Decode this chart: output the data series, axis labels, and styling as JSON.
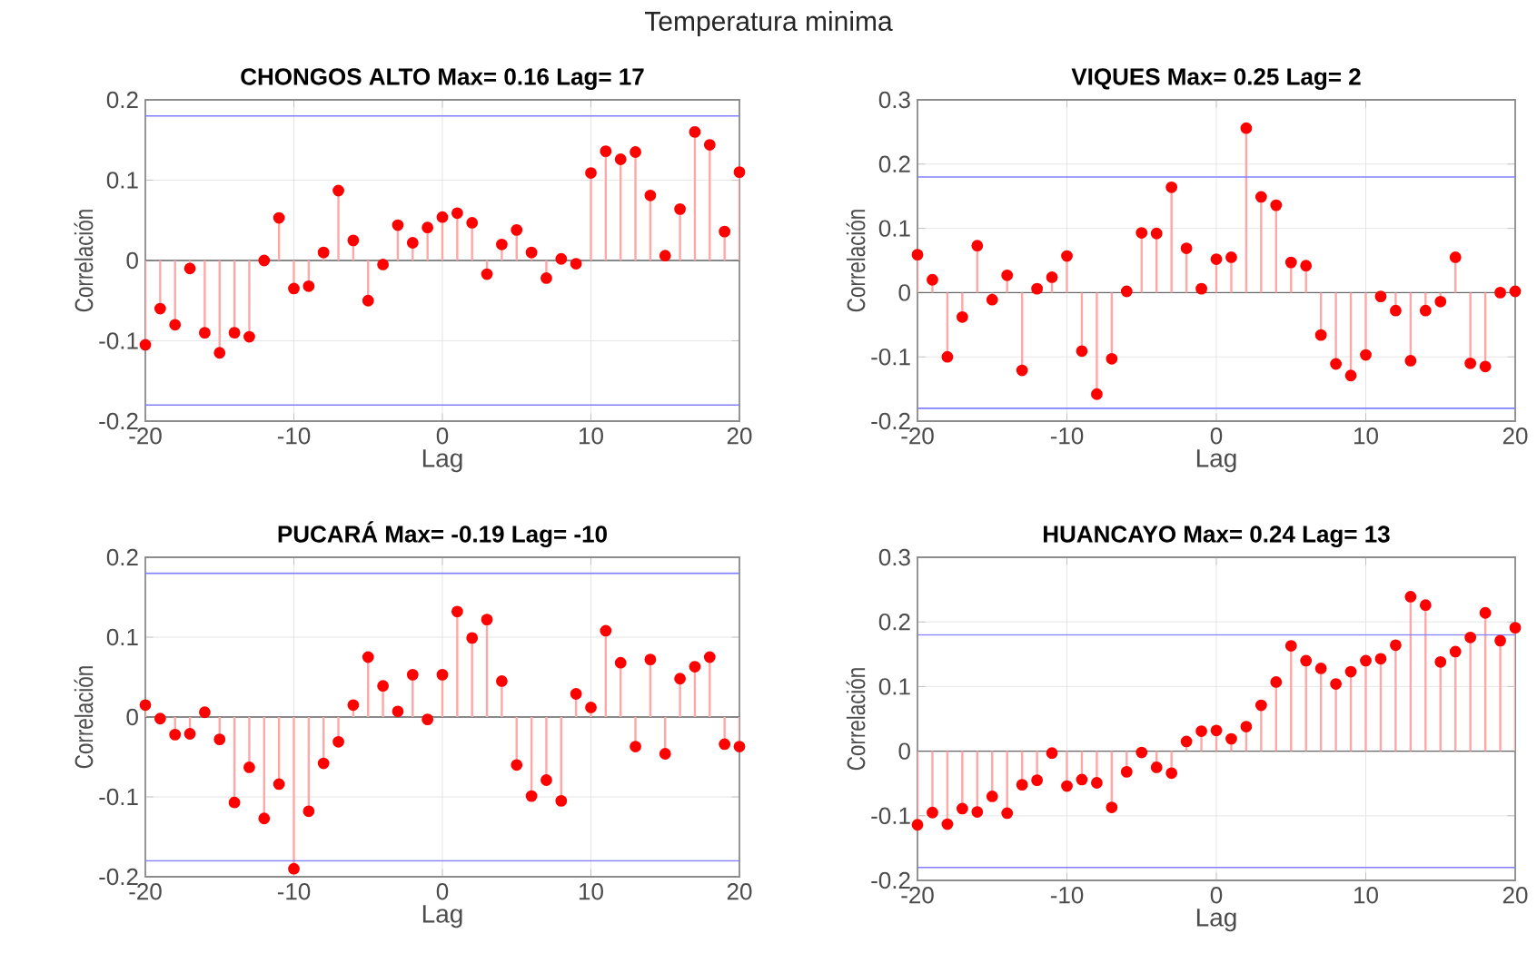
{
  "chart_data": [
    {
      "type": "lollipop",
      "title": "CHONGOS ALTO Max= 0.16 Lag= 17",
      "xlabel": "Lag",
      "ylabel": "Correlación",
      "annotations": [
        "Temperatura minima"
      ],
      "marker": "circle",
      "grid": true,
      "xlim": [
        -20,
        20
      ],
      "xticks": [
        -20,
        -10,
        0,
        10,
        20
      ],
      "ylim": [
        -0.2,
        0.2
      ],
      "yticks": [
        -0.2,
        -0.1,
        0,
        0.1,
        0.2
      ],
      "x": [
        -20,
        -19,
        -18,
        -17,
        -16,
        -15,
        -14,
        -13,
        -12,
        -11,
        -10,
        -9,
        -8,
        -7,
        -6,
        -5,
        -4,
        -3,
        -2,
        -1,
        0,
        1,
        2,
        3,
        4,
        5,
        6,
        7,
        8,
        9,
        10,
        11,
        12,
        13,
        14,
        15,
        16,
        17,
        18,
        19,
        20
      ],
      "series": [
        {
          "color": "#ff0000",
          "values": [
            -0.105,
            -0.06,
            -0.08,
            -0.01,
            -0.09,
            -0.115,
            -0.09,
            -0.095,
            0.0,
            0.053,
            -0.035,
            -0.032,
            0.01,
            0.087,
            0.025,
            -0.05,
            -0.005,
            0.044,
            0.022,
            0.041,
            0.054,
            0.059,
            0.047,
            -0.017,
            0.02,
            0.038,
            0.01,
            -0.022,
            0.002,
            -0.004,
            0.109,
            0.136,
            0.126,
            0.135,
            0.081,
            0.006,
            0.064,
            0.16,
            0.144,
            0.036,
            0.11
          ]
        }
      ],
      "ref_lines": [
        {
          "axis": "y",
          "value": 0.18,
          "color": "#8080ff"
        },
        {
          "axis": "y",
          "value": -0.18,
          "color": "#8080ff"
        }
      ]
    },
    {
      "type": "lollipop",
      "title": "VIQUES Max= 0.25 Lag= 2",
      "xlabel": "Lag",
      "ylabel": "Correlación",
      "marker": "circle",
      "grid": true,
      "xlim": [
        -20,
        20
      ],
      "xticks": [
        -20,
        -10,
        0,
        10,
        20
      ],
      "ylim": [
        -0.2,
        0.3
      ],
      "yticks": [
        -0.2,
        -0.1,
        0,
        0.1,
        0.2,
        0.3
      ],
      "x": [
        -20,
        -19,
        -18,
        -17,
        -16,
        -15,
        -14,
        -13,
        -12,
        -11,
        -10,
        -9,
        -8,
        -7,
        -6,
        -5,
        -4,
        -3,
        -2,
        -1,
        0,
        1,
        2,
        3,
        4,
        5,
        6,
        7,
        8,
        9,
        10,
        11,
        12,
        13,
        14,
        15,
        16,
        17,
        18,
        19,
        20
      ],
      "series": [
        {
          "color": "#ff0000",
          "values": [
            0.059,
            0.02,
            -0.1,
            -0.038,
            0.073,
            -0.011,
            0.027,
            -0.121,
            0.006,
            0.024,
            0.057,
            -0.091,
            -0.158,
            -0.103,
            0.002,
            0.093,
            0.092,
            0.164,
            0.069,
            0.006,
            0.052,
            0.055,
            0.256,
            0.149,
            0.136,
            0.047,
            0.042,
            -0.066,
            -0.111,
            -0.129,
            -0.097,
            -0.006,
            -0.028,
            -0.106,
            -0.028,
            -0.014,
            0.055,
            -0.11,
            -0.115,
            0.0,
            0.002
          ]
        }
      ],
      "ref_lines": [
        {
          "axis": "y",
          "value": 0.18,
          "color": "#8080ff"
        },
        {
          "axis": "y",
          "value": -0.18,
          "color": "#8080ff"
        }
      ]
    },
    {
      "type": "lollipop",
      "title": "PUCARÁ Max= -0.19 Lag= -10",
      "xlabel": "Lag",
      "ylabel": "Correlación",
      "marker": "circle",
      "grid": true,
      "xlim": [
        -20,
        20
      ],
      "xticks": [
        -20,
        -10,
        0,
        10,
        20
      ],
      "ylim": [
        -0.2,
        0.2
      ],
      "yticks": [
        -0.2,
        -0.1,
        0,
        0.1,
        0.2
      ],
      "x": [
        -20,
        -19,
        -18,
        -17,
        -16,
        -15,
        -14,
        -13,
        -12,
        -11,
        -10,
        -9,
        -8,
        -7,
        -6,
        -5,
        -4,
        -3,
        -2,
        -1,
        0,
        1,
        2,
        3,
        4,
        5,
        6,
        7,
        8,
        9,
        10,
        11,
        12,
        13,
        14,
        15,
        16,
        17,
        18,
        19,
        20
      ],
      "series": [
        {
          "color": "#ff0000",
          "values": [
            0.015,
            -0.002,
            -0.022,
            -0.021,
            0.006,
            -0.028,
            -0.107,
            -0.063,
            -0.127,
            -0.084,
            -0.19,
            -0.118,
            -0.058,
            -0.031,
            0.015,
            0.075,
            0.039,
            0.007,
            0.053,
            -0.003,
            0.053,
            0.132,
            0.099,
            0.122,
            0.045,
            -0.06,
            -0.099,
            -0.079,
            -0.105,
            0.029,
            0.012,
            0.108,
            0.068,
            -0.037,
            0.072,
            -0.046,
            0.048,
            0.063,
            0.075,
            -0.034,
            -0.037
          ]
        }
      ],
      "ref_lines": [
        {
          "axis": "y",
          "value": 0.18,
          "color": "#8080ff"
        },
        {
          "axis": "y",
          "value": -0.18,
          "color": "#8080ff"
        }
      ]
    },
    {
      "type": "lollipop",
      "title": "HUANCAYO Max= 0.24 Lag= 13",
      "xlabel": "Lag",
      "ylabel": "Correlación",
      "marker": "circle",
      "grid": true,
      "xlim": [
        -20,
        20
      ],
      "xticks": [
        -20,
        -10,
        0,
        10,
        20
      ],
      "ylim": [
        -0.2,
        0.3
      ],
      "yticks": [
        -0.2,
        -0.1,
        0,
        0.1,
        0.2,
        0.3
      ],
      "x": [
        -20,
        -19,
        -18,
        -17,
        -16,
        -15,
        -14,
        -13,
        -12,
        -11,
        -10,
        -9,
        -8,
        -7,
        -6,
        -5,
        -4,
        -3,
        -2,
        -1,
        0,
        1,
        2,
        3,
        4,
        5,
        6,
        7,
        8,
        9,
        10,
        11,
        12,
        13,
        14,
        15,
        16,
        17,
        18,
        19,
        20
      ],
      "series": [
        {
          "color": "#ff0000",
          "values": [
            -0.114,
            -0.095,
            -0.113,
            -0.089,
            -0.094,
            -0.07,
            -0.096,
            -0.052,
            -0.045,
            -0.003,
            -0.054,
            -0.044,
            -0.049,
            -0.087,
            -0.032,
            -0.002,
            -0.025,
            -0.034,
            0.015,
            0.031,
            0.032,
            0.019,
            0.038,
            0.071,
            0.107,
            0.163,
            0.14,
            0.128,
            0.104,
            0.123,
            0.14,
            0.143,
            0.164,
            0.239,
            0.226,
            0.138,
            0.154,
            0.176,
            0.214,
            0.171,
            0.191
          ]
        }
      ],
      "ref_lines": [
        {
          "axis": "y",
          "value": 0.18,
          "color": "#8080ff"
        },
        {
          "axis": "y",
          "value": -0.18,
          "color": "#8080ff"
        }
      ]
    }
  ]
}
